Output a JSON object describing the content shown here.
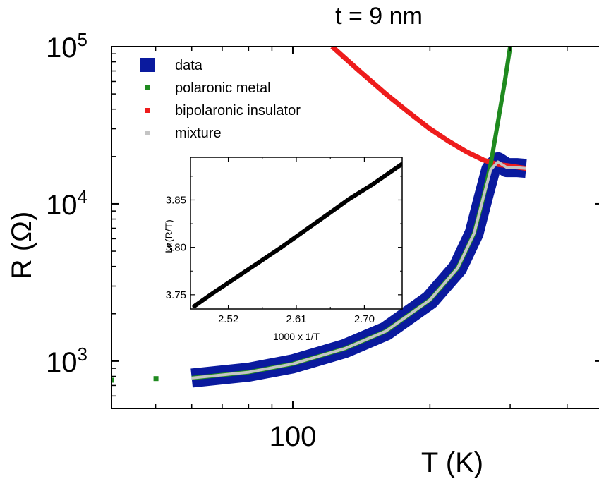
{
  "chart_data": [
    {
      "type": "line",
      "title": "t = 9 nm",
      "xlabel": "T (K)",
      "ylabel": "R (Ω)",
      "x_scale": "log",
      "y_scale": "log",
      "xlim": [
        40,
        470
      ],
      "ylim": [
        500,
        100000
      ],
      "x_tick_labels": [
        {
          "value": 100,
          "label": "100"
        }
      ],
      "y_tick_labels": [
        {
          "value": 1000,
          "base": "10",
          "exp": "3"
        },
        {
          "value": 10000,
          "base": "10",
          "exp": "4"
        },
        {
          "value": 100000,
          "base": "10",
          "exp": "5"
        }
      ],
      "legend_position": "top-left",
      "series": [
        {
          "name": "data",
          "color": "#0a1a9e",
          "style": "thick-band",
          "x": [
            60,
            80,
            100,
            130,
            160,
            200,
            230,
            250,
            262,
            272,
            282,
            295,
            310,
            325
          ],
          "y": [
            780,
            850,
            960,
            1200,
            1550,
            2450,
            3900,
            6500,
            11000,
            16500,
            18500,
            17000,
            17000,
            16800
          ]
        },
        {
          "name": "polaronic metal",
          "color": "#1f8a1f",
          "style": "line",
          "x": [
            40,
            50,
            60,
            80,
            100,
            130,
            160,
            200,
            230,
            250,
            262,
            272,
            282,
            292,
            300
          ],
          "y": [
            760,
            770,
            780,
            850,
            960,
            1200,
            1550,
            2450,
            3900,
            6500,
            11000,
            18000,
            33000,
            60000,
            100000
          ]
        },
        {
          "name": "bipolaronic insulator",
          "color": "#ee1c1c",
          "style": "line",
          "x": [
            122,
            140,
            160,
            180,
            200,
            220,
            240,
            262,
            282,
            300,
            325
          ],
          "y": [
            100000,
            70000,
            50000,
            38000,
            30000,
            25000,
            21500,
            19000,
            17800,
            17400,
            16800
          ]
        },
        {
          "name": "mixture",
          "color": "#c4c4c4",
          "style": "line",
          "x": [
            60,
            80,
            100,
            130,
            160,
            200,
            230,
            250,
            262,
            272,
            282,
            295,
            310,
            325
          ],
          "y": [
            780,
            850,
            960,
            1200,
            1550,
            2450,
            3900,
            6500,
            11000,
            16500,
            18500,
            17000,
            17000,
            16800
          ]
        }
      ]
    },
    {
      "type": "scatter",
      "title": "",
      "xlabel": "1000 x 1/T",
      "ylabel": "Ln(R/T)",
      "xlim": [
        2.47,
        2.75
      ],
      "ylim": [
        3.735,
        3.895
      ],
      "x_ticks": [
        "2.52",
        "2.61",
        "2.70"
      ],
      "y_ticks": [
        "3.75",
        "3.80",
        "3.85"
      ],
      "legend_position": "none",
      "series": [
        {
          "color": "#000000",
          "x": [
            2.475,
            2.5,
            2.53,
            2.56,
            2.59,
            2.62,
            2.65,
            2.68,
            2.71,
            2.75
          ],
          "y": [
            3.738,
            3.752,
            3.768,
            3.784,
            3.8,
            3.817,
            3.834,
            3.851,
            3.866,
            3.888
          ]
        }
      ]
    }
  ]
}
